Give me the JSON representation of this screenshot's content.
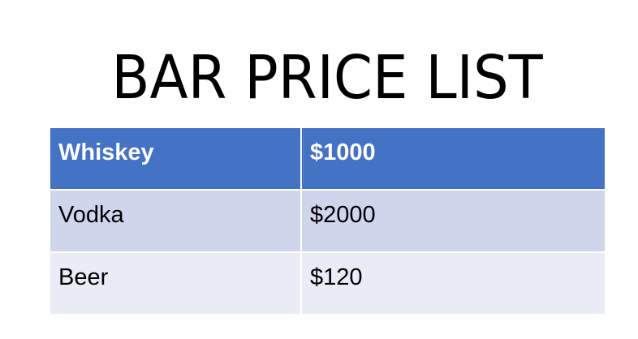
{
  "title": "BAR PRICE LIST",
  "table": {
    "rows": [
      {
        "item": "Whiskey",
        "price": "$1000"
      },
      {
        "item": "Vodka",
        "price": "$2000"
      },
      {
        "item": "Beer",
        "price": "$120"
      }
    ]
  },
  "colors": {
    "header_bg": "#4472c4",
    "band_dark": "#cfd5ea",
    "band_light": "#e9ebf5"
  }
}
